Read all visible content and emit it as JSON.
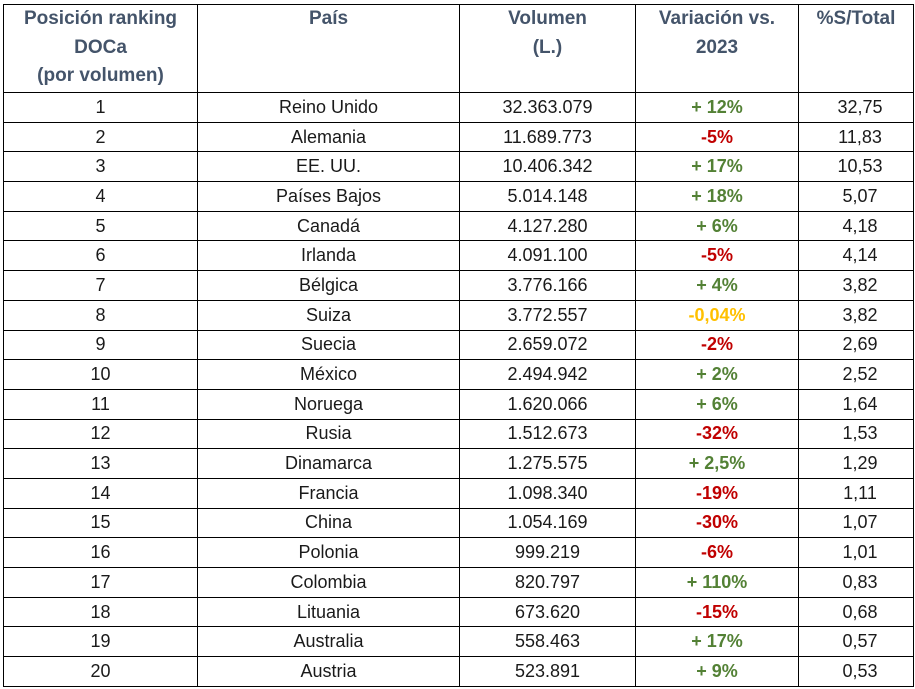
{
  "headers": {
    "position": "Posición ranking DOCa (por volumen)",
    "country": "País",
    "volume": "Volumen (L.)",
    "variation": "Variación vs. 2023",
    "share": "%S/Total"
  },
  "colors": {
    "positive": "#538135",
    "negative": "#c00000",
    "neutral": "#ffc000",
    "header": "#44546a"
  },
  "rows": [
    {
      "rank": "1",
      "country": "Reino Unido",
      "volume": "32.363.079",
      "variation": "+ 12%",
      "trend": "positive",
      "share": "32,75"
    },
    {
      "rank": "2",
      "country": "Alemania",
      "volume": "11.689.773",
      "variation": "-5%",
      "trend": "negative",
      "share": "11,83"
    },
    {
      "rank": "3",
      "country": "EE. UU.",
      "volume": "10.406.342",
      "variation": "+ 17%",
      "trend": "positive",
      "share": "10,53"
    },
    {
      "rank": "4",
      "country": "Países Bajos",
      "volume": "5.014.148",
      "variation": "+ 18%",
      "trend": "positive",
      "share": "5,07"
    },
    {
      "rank": "5",
      "country": "Canadá",
      "volume": "4.127.280",
      "variation": "+ 6%",
      "trend": "positive",
      "share": "4,18"
    },
    {
      "rank": "6",
      "country": "Irlanda",
      "volume": "4.091.100",
      "variation": "-5%",
      "trend": "negative",
      "share": "4,14"
    },
    {
      "rank": "7",
      "country": "Bélgica",
      "volume": "3.776.166",
      "variation": "+ 4%",
      "trend": "positive",
      "share": "3,82"
    },
    {
      "rank": "8",
      "country": "Suiza",
      "volume": "3.772.557",
      "variation": "-0,04%",
      "trend": "neutral",
      "share": "3,82"
    },
    {
      "rank": "9",
      "country": "Suecia",
      "volume": "2.659.072",
      "variation": "-2%",
      "trend": "negative",
      "share": "2,69"
    },
    {
      "rank": "10",
      "country": "México",
      "volume": "2.494.942",
      "variation": "+ 2%",
      "trend": "positive",
      "share": "2,52"
    },
    {
      "rank": "11",
      "country": "Noruega",
      "volume": "1.620.066",
      "variation": "+ 6%",
      "trend": "positive",
      "share": "1,64"
    },
    {
      "rank": "12",
      "country": "Rusia",
      "volume": "1.512.673",
      "variation": "-32%",
      "trend": "negative",
      "share": "1,53"
    },
    {
      "rank": "13",
      "country": "Dinamarca",
      "volume": "1.275.575",
      "variation": "+ 2,5%",
      "trend": "positive",
      "share": "1,29"
    },
    {
      "rank": "14",
      "country": "Francia",
      "volume": "1.098.340",
      "variation": "-19%",
      "trend": "negative",
      "share": "1,11"
    },
    {
      "rank": "15",
      "country": "China",
      "volume": "1.054.169",
      "variation": "-30%",
      "trend": "negative",
      "share": "1,07"
    },
    {
      "rank": "16",
      "country": "Polonia",
      "volume": "999.219",
      "variation": "-6%",
      "trend": "negative",
      "share": "1,01"
    },
    {
      "rank": "17",
      "country": "Colombia",
      "volume": "820.797",
      "variation": "+ 110%",
      "trend": "positive",
      "share": "0,83"
    },
    {
      "rank": "18",
      "country": "Lituania",
      "volume": "673.620",
      "variation": "-15%",
      "trend": "negative",
      "share": "0,68"
    },
    {
      "rank": "19",
      "country": "Australia",
      "volume": "558.463",
      "variation": "+ 17%",
      "trend": "positive",
      "share": "0,57"
    },
    {
      "rank": "20",
      "country": "Austria",
      "volume": "523.891",
      "variation": "+ 9%",
      "trend": "positive",
      "share": "0,53"
    }
  ]
}
